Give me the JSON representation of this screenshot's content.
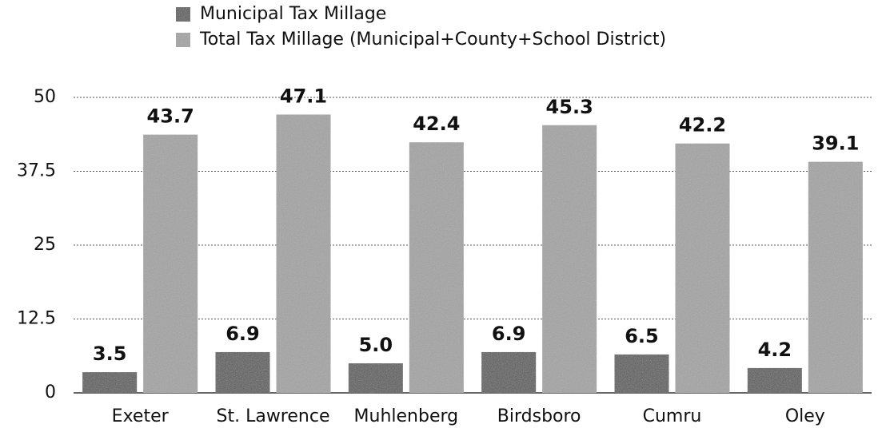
{
  "chart_data": {
    "type": "bar",
    "categories": [
      "Exeter",
      "St. Lawrence",
      "Muhlenberg",
      "Birdsboro",
      "Cumru",
      "Oley"
    ],
    "series": [
      {
        "name": "Municipal Tax Millage",
        "color": "#5a5a5a",
        "values": [
          3.5,
          6.9,
          5.0,
          6.9,
          6.5,
          4.2
        ],
        "value_labels": [
          "3.5",
          "6.9",
          "5.0",
          "6.9",
          "6.5",
          "4.2"
        ]
      },
      {
        "name": "Total Tax Millage (Municipal+County+School District)",
        "color": "#a3a3a3",
        "values": [
          43.7,
          47.1,
          42.4,
          45.3,
          42.2,
          39.1
        ]
      }
    ],
    "ylim": [
      0,
      50
    ],
    "yticks": [
      0,
      12.5,
      25,
      37.5,
      50
    ],
    "grid": true
  }
}
